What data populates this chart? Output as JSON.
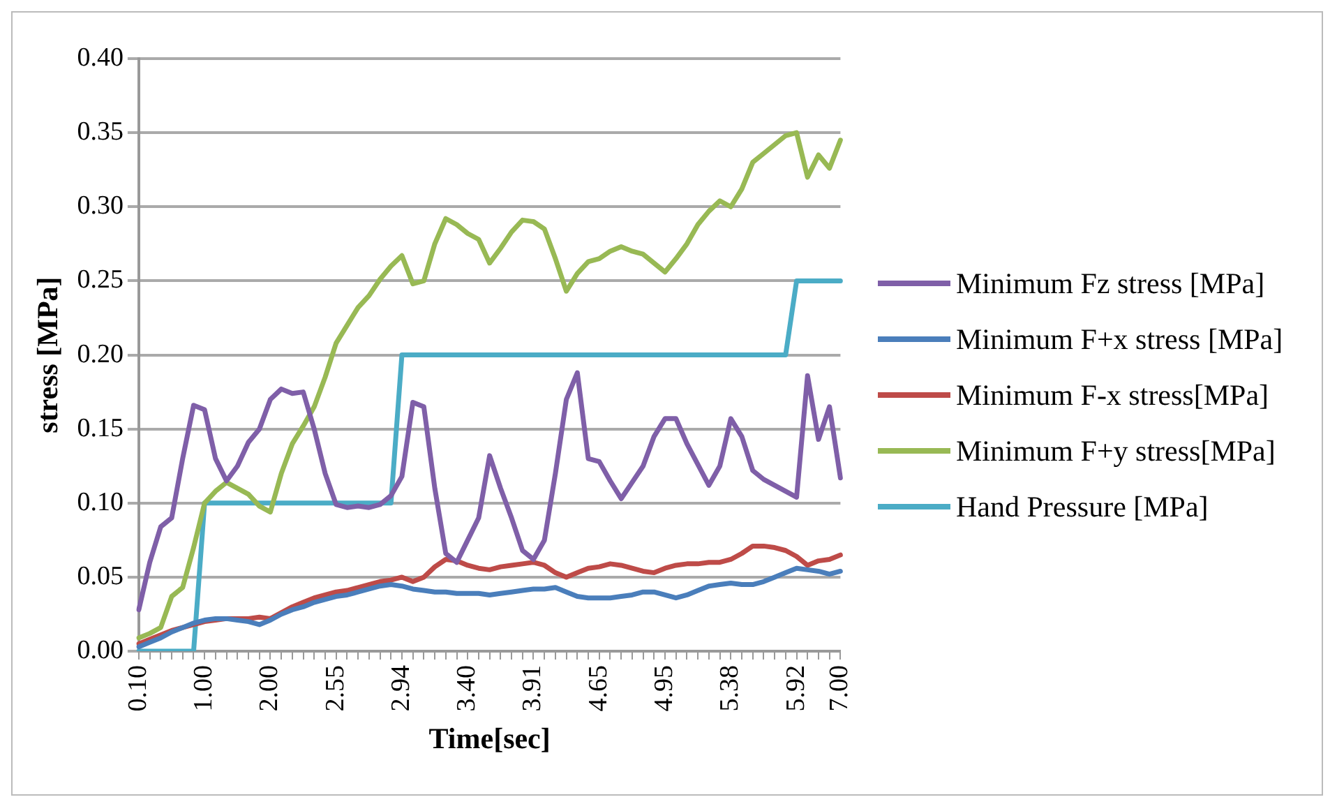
{
  "chart_data": {
    "type": "line",
    "xlabel": "Time[sec]",
    "ylabel": "stress [MPa]",
    "categories": [
      "0.10",
      null,
      null,
      null,
      null,
      null,
      "1.00",
      null,
      null,
      null,
      null,
      null,
      "2.00",
      null,
      null,
      null,
      null,
      null,
      "2.55",
      null,
      null,
      null,
      null,
      null,
      "2.94",
      null,
      null,
      null,
      null,
      null,
      "3.40",
      null,
      null,
      null,
      null,
      null,
      "3.91",
      null,
      null,
      null,
      null,
      null,
      "4.65",
      null,
      null,
      null,
      null,
      null,
      "4.95",
      null,
      null,
      null,
      null,
      null,
      "5.38",
      null,
      null,
      null,
      null,
      null,
      "5.92",
      null,
      null,
      null,
      "7.00"
    ],
    "series": [
      {
        "name": "Minimum  Fz stress [MPa]",
        "color": "#7f5fa8",
        "values": [
          0.028,
          0.06,
          0.084,
          0.09,
          0.13,
          0.166,
          0.163,
          0.13,
          0.115,
          0.125,
          0.141,
          0.15,
          0.17,
          0.177,
          0.174,
          0.175,
          0.15,
          0.12,
          0.099,
          0.097,
          0.098,
          0.097,
          0.099,
          0.105,
          0.118,
          0.168,
          0.165,
          0.11,
          0.066,
          0.06,
          0.075,
          0.09,
          0.132,
          0.11,
          0.09,
          0.068,
          0.062,
          0.075,
          0.12,
          0.17,
          0.188,
          0.13,
          0.128,
          0.115,
          0.103,
          0.114,
          0.125,
          0.145,
          0.157,
          0.157,
          0.14,
          0.126,
          0.112,
          0.125,
          0.157,
          0.145,
          0.122,
          0.116,
          0.112,
          0.108,
          0.104,
          0.186,
          0.143,
          0.165,
          0.117
        ]
      },
      {
        "name": "Minimum F+x stress [MPa]",
        "color": "#4a7ebb",
        "values": [
          0.003,
          0.006,
          0.009,
          0.013,
          0.016,
          0.019,
          0.021,
          0.022,
          0.022,
          0.021,
          0.02,
          0.018,
          0.021,
          0.025,
          0.028,
          0.03,
          0.033,
          0.035,
          0.037,
          0.038,
          0.04,
          0.042,
          0.044,
          0.045,
          0.044,
          0.042,
          0.041,
          0.04,
          0.04,
          0.039,
          0.039,
          0.039,
          0.038,
          0.039,
          0.04,
          0.041,
          0.042,
          0.042,
          0.043,
          0.04,
          0.037,
          0.036,
          0.036,
          0.036,
          0.037,
          0.038,
          0.04,
          0.04,
          0.038,
          0.036,
          0.038,
          0.041,
          0.044,
          0.045,
          0.046,
          0.045,
          0.045,
          0.047,
          0.05,
          0.053,
          0.056,
          0.055,
          0.054,
          0.052,
          0.054
        ]
      },
      {
        "name": "Minimum F-x stress[MPa]",
        "color": "#be4b48",
        "values": [
          0.005,
          0.008,
          0.011,
          0.014,
          0.016,
          0.018,
          0.02,
          0.021,
          0.022,
          0.022,
          0.022,
          0.023,
          0.022,
          0.026,
          0.03,
          0.033,
          0.036,
          0.038,
          0.04,
          0.041,
          0.043,
          0.045,
          0.047,
          0.048,
          0.05,
          0.047,
          0.05,
          0.057,
          0.062,
          0.061,
          0.058,
          0.056,
          0.055,
          0.057,
          0.058,
          0.059,
          0.06,
          0.058,
          0.053,
          0.05,
          0.053,
          0.056,
          0.057,
          0.059,
          0.058,
          0.056,
          0.054,
          0.053,
          0.056,
          0.058,
          0.059,
          0.059,
          0.06,
          0.06,
          0.062,
          0.066,
          0.071,
          0.071,
          0.07,
          0.068,
          0.064,
          0.058,
          0.061,
          0.062,
          0.065
        ]
      },
      {
        "name": "Minimum F+y stress[MPa]",
        "color": "#98b954",
        "values": [
          0.009,
          0.012,
          0.016,
          0.037,
          0.043,
          0.07,
          0.1,
          0.108,
          0.114,
          0.11,
          0.106,
          0.098,
          0.094,
          0.12,
          0.14,
          0.152,
          0.165,
          0.185,
          0.208,
          0.22,
          0.232,
          0.24,
          0.251,
          0.26,
          0.267,
          0.248,
          0.25,
          0.275,
          0.292,
          0.288,
          0.282,
          0.278,
          0.262,
          0.272,
          0.283,
          0.291,
          0.29,
          0.285,
          0.265,
          0.243,
          0.255,
          0.263,
          0.265,
          0.27,
          0.273,
          0.27,
          0.268,
          0.262,
          0.256,
          0.265,
          0.275,
          0.288,
          0.297,
          0.304,
          0.3,
          0.312,
          0.33,
          0.336,
          0.342,
          0.348,
          0.35,
          0.32,
          0.335,
          0.326,
          0.345
        ]
      },
      {
        "name": "Hand Pressure [MPa]",
        "color": "#4bacc6",
        "values": [
          0,
          0,
          0,
          0,
          0,
          0,
          0.1,
          0.1,
          0.1,
          0.1,
          0.1,
          0.1,
          0.1,
          0.1,
          0.1,
          0.1,
          0.1,
          0.1,
          0.1,
          0.1,
          0.1,
          0.1,
          0.1,
          0.1,
          0.2,
          0.2,
          0.2,
          0.2,
          0.2,
          0.2,
          0.2,
          0.2,
          0.2,
          0.2,
          0.2,
          0.2,
          0.2,
          0.2,
          0.2,
          0.2,
          0.2,
          0.2,
          0.2,
          0.2,
          0.2,
          0.2,
          0.2,
          0.2,
          0.2,
          0.2,
          0.2,
          0.2,
          0.2,
          0.2,
          0.2,
          0.2,
          0.2,
          0.2,
          0.2,
          0.2,
          0.25,
          0.25,
          0.25,
          0.25,
          0.25
        ]
      }
    ],
    "ylim": [
      0,
      0.4
    ],
    "yticks": [
      {
        "value": 0,
        "label": "0.00"
      },
      {
        "value": 0.05,
        "label": "0.05"
      },
      {
        "value": 0.1,
        "label": "0.10"
      },
      {
        "value": 0.15,
        "label": "0.15"
      },
      {
        "value": 0.2,
        "label": "0.20"
      },
      {
        "value": 0.25,
        "label": "0.25"
      },
      {
        "value": 0.3,
        "label": "0.30"
      },
      {
        "value": 0.35,
        "label": "0.35"
      },
      {
        "value": 0.4,
        "label": "0.40"
      }
    ],
    "grid": "y",
    "legend": "right",
    "marker": "none",
    "line_style": "solid"
  }
}
